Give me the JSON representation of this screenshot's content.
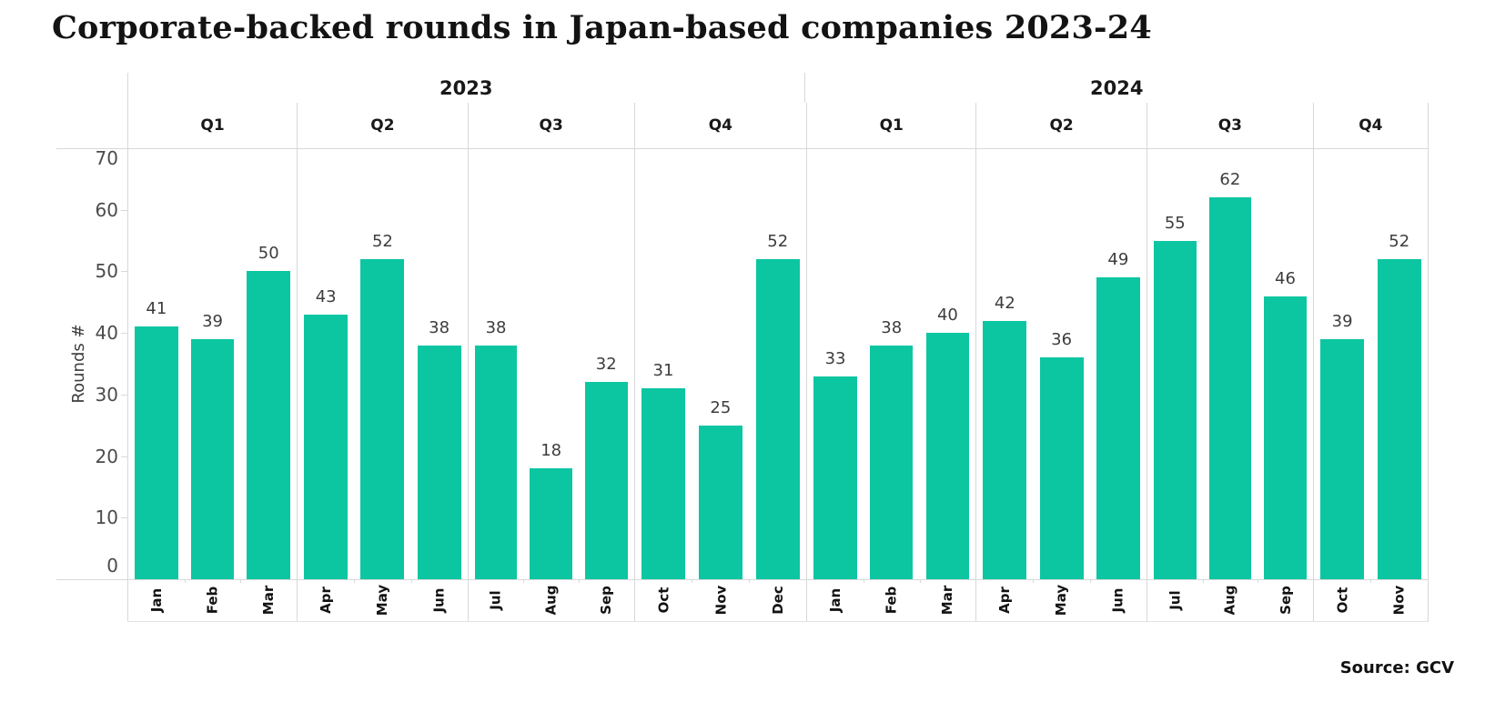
{
  "title": "Corporate-backed rounds in Japan-based companies 2023-24",
  "source": "Source: GCV",
  "chart_data": {
    "type": "bar",
    "title": "Corporate-backed rounds in Japan-based companies 2023-24",
    "xlabel": "",
    "ylabel": "Rounds #",
    "ylim": [
      0,
      70
    ],
    "yticks": [
      0,
      10,
      20,
      30,
      40,
      50,
      60,
      70
    ],
    "bar_color": "#0cc6a2",
    "grid_color": "#d8d8d8",
    "grid": "quarter and year separators only, top and baseline rules",
    "legend": "none",
    "source": "Source: GCV",
    "years": [
      {
        "label": "2023",
        "quarters": [
          {
            "label": "Q1",
            "months": [
              {
                "label": "Jan",
                "value": 41
              },
              {
                "label": "Feb",
                "value": 39
              },
              {
                "label": "Mar",
                "value": 50
              }
            ]
          },
          {
            "label": "Q2",
            "months": [
              {
                "label": "Apr",
                "value": 43
              },
              {
                "label": "May",
                "value": 52
              },
              {
                "label": "Jun",
                "value": 38
              }
            ]
          },
          {
            "label": "Q3",
            "months": [
              {
                "label": "Jul",
                "value": 38
              },
              {
                "label": "Aug",
                "value": 18
              },
              {
                "label": "Sep",
                "value": 32
              }
            ]
          },
          {
            "label": "Q4",
            "months": [
              {
                "label": "Oct",
                "value": 31
              },
              {
                "label": "Nov",
                "value": 25
              },
              {
                "label": "Dec",
                "value": 52
              }
            ]
          }
        ]
      },
      {
        "label": "2024",
        "quarters": [
          {
            "label": "Q1",
            "months": [
              {
                "label": "Jan",
                "value": 33
              },
              {
                "label": "Feb",
                "value": 38
              },
              {
                "label": "Mar",
                "value": 40
              }
            ]
          },
          {
            "label": "Q2",
            "months": [
              {
                "label": "Apr",
                "value": 42
              },
              {
                "label": "May",
                "value": 36
              },
              {
                "label": "Jun",
                "value": 49
              }
            ]
          },
          {
            "label": "Q3",
            "months": [
              {
                "label": "Jul",
                "value": 55
              },
              {
                "label": "Aug",
                "value": 62
              },
              {
                "label": "Sep",
                "value": 46
              }
            ]
          },
          {
            "label": "Q4",
            "months": [
              {
                "label": "Oct",
                "value": 39
              },
              {
                "label": "Nov",
                "value": 52
              }
            ]
          }
        ]
      }
    ]
  }
}
